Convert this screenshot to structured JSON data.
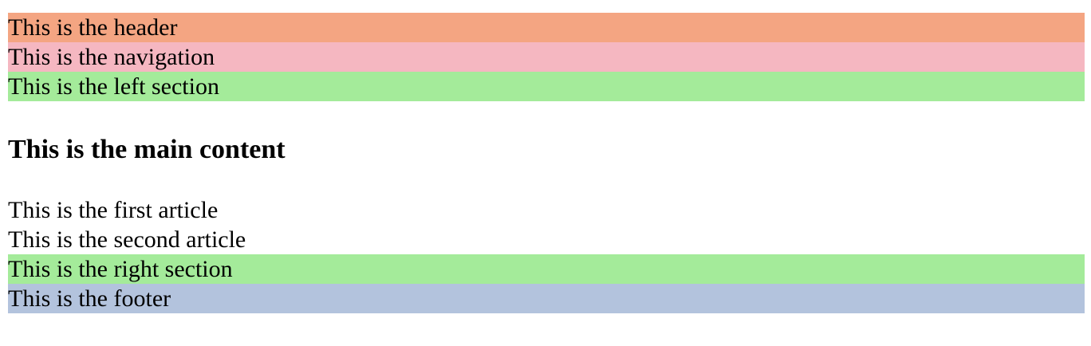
{
  "header": {
    "text": "This is the header",
    "color": "#f4a582"
  },
  "navigation": {
    "text": "This is the navigation",
    "color": "#f5b7c1"
  },
  "left_section": {
    "text": "This is the left section",
    "color": "#a4eb9a"
  },
  "main": {
    "title": "This is the main content",
    "articles": [
      {
        "text": "This is the first article"
      },
      {
        "text": "This is the second article"
      }
    ]
  },
  "right_section": {
    "text": "This is the right section",
    "color": "#a4eb9a"
  },
  "footer": {
    "text": "This is the footer",
    "color": "#b3c3dd"
  }
}
